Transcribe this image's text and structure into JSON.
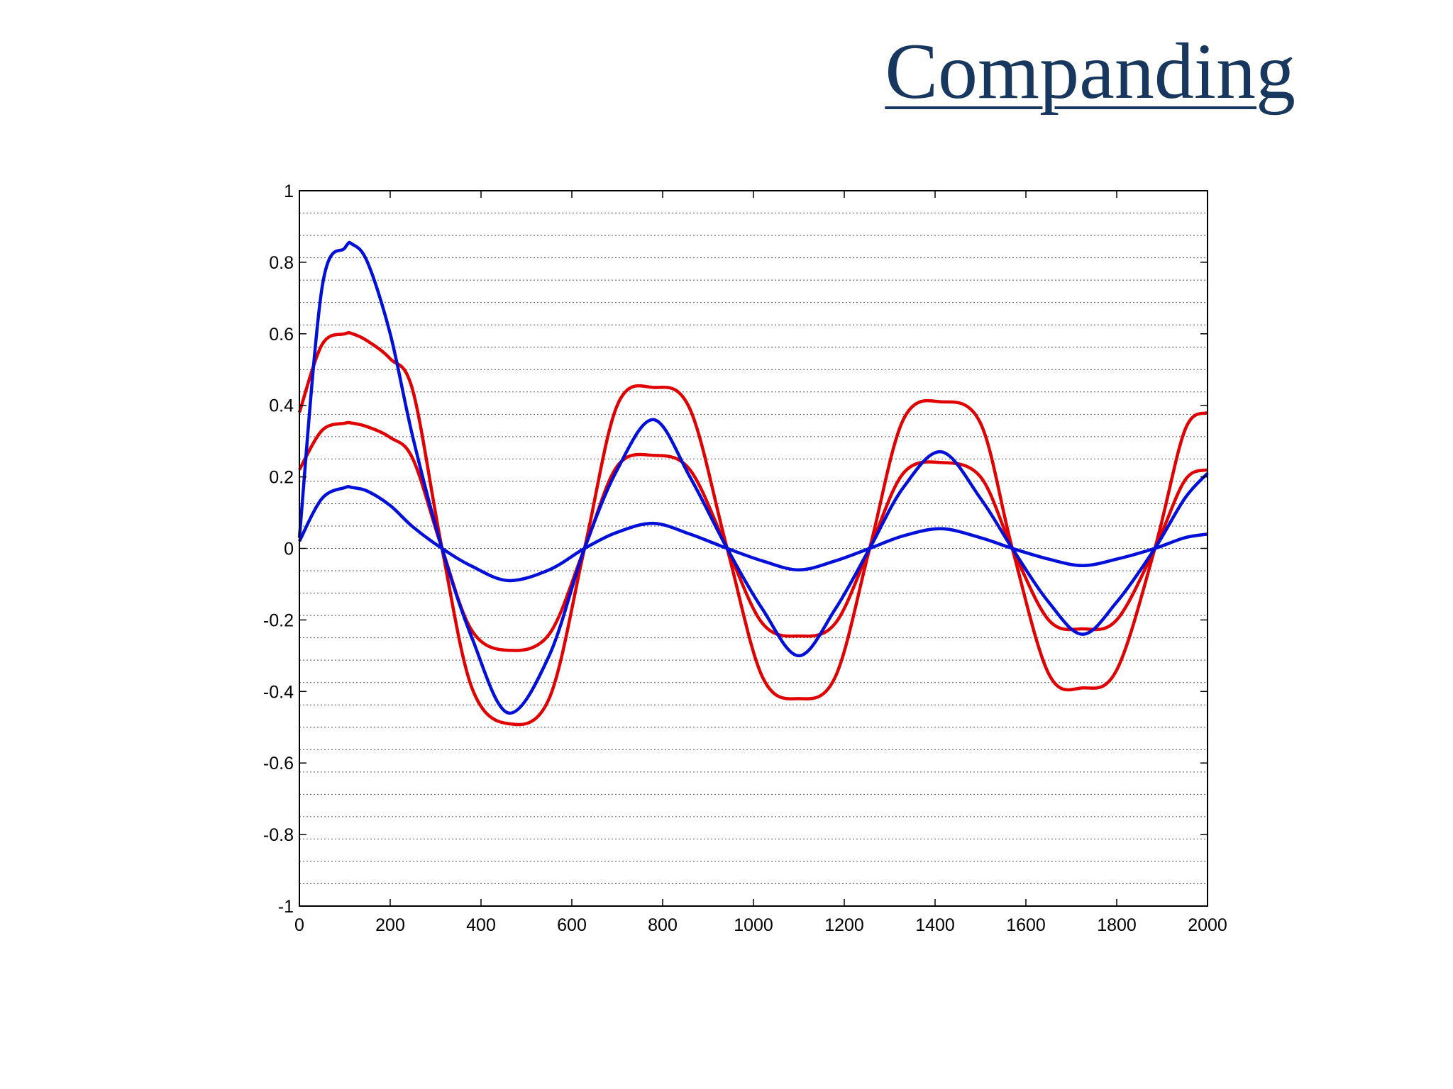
{
  "slide": {
    "title": "Companding"
  },
  "colors": {
    "title": "#17375e",
    "red": "#e00000",
    "blue": "#0010d8",
    "grid": "#555555",
    "axes": "#000000"
  },
  "chart_data": {
    "type": "line",
    "title": "",
    "xlabel": "",
    "ylabel": "",
    "xlim": [
      0,
      2000
    ],
    "ylim": [
      -1,
      1
    ],
    "xticks": [
      "0",
      "200",
      "400",
      "600",
      "800",
      "1000",
      "1200",
      "1400",
      "1600",
      "1800",
      "2000"
    ],
    "yticks": [
      "1",
      "0.8",
      "0.6",
      "0.4",
      "0.2",
      "0",
      "-0.2",
      "-0.4",
      "-0.6",
      "-0.8",
      "-1"
    ],
    "grid": "horizontal dotted",
    "legend": "none",
    "x": [
      0,
      50,
      100,
      117,
      150,
      200,
      250,
      314,
      380,
      460,
      550,
      628,
      700,
      780,
      860,
      942,
      1020,
      1100,
      1180,
      1256,
      1330,
      1414,
      1500,
      1570,
      1650,
      1725,
      1800,
      1884,
      1950,
      2000
    ],
    "series": [
      {
        "color": "blue",
        "values": [
          0.03,
          0.73,
          0.84,
          0.85,
          0.8,
          0.6,
          0.31,
          0.0,
          -0.25,
          -0.46,
          -0.3,
          0.0,
          0.22,
          0.36,
          0.2,
          0.0,
          -0.17,
          -0.3,
          -0.17,
          0.0,
          0.17,
          0.27,
          0.14,
          0.0,
          -0.15,
          -0.24,
          -0.15,
          0.0,
          0.14,
          0.21
        ]
      },
      {
        "color": "blue",
        "values": [
          0.02,
          0.14,
          0.17,
          0.17,
          0.16,
          0.12,
          0.06,
          0.0,
          -0.05,
          -0.09,
          -0.06,
          0.0,
          0.045,
          0.07,
          0.04,
          0.0,
          -0.035,
          -0.06,
          -0.035,
          0.0,
          0.035,
          0.055,
          0.03,
          0.0,
          -0.03,
          -0.048,
          -0.03,
          0.0,
          0.03,
          0.04
        ]
      },
      {
        "color": "red",
        "values": [
          0.38,
          0.57,
          0.6,
          0.6,
          0.58,
          0.53,
          0.44,
          0.0,
          -0.39,
          -0.49,
          -0.42,
          0.0,
          0.4,
          0.45,
          0.39,
          0.0,
          -0.36,
          -0.42,
          -0.36,
          0.0,
          0.36,
          0.41,
          0.35,
          0.0,
          -0.35,
          -0.39,
          -0.34,
          0.0,
          0.33,
          0.38
        ]
      },
      {
        "color": "red",
        "values": [
          0.22,
          0.33,
          0.35,
          0.35,
          0.34,
          0.31,
          0.25,
          0.0,
          -0.23,
          -0.285,
          -0.24,
          0.0,
          0.23,
          0.26,
          0.22,
          0.0,
          -0.21,
          -0.245,
          -0.21,
          0.0,
          0.21,
          0.24,
          0.2,
          0.0,
          -0.2,
          -0.225,
          -0.2,
          0.0,
          0.19,
          0.22
        ]
      }
    ]
  }
}
